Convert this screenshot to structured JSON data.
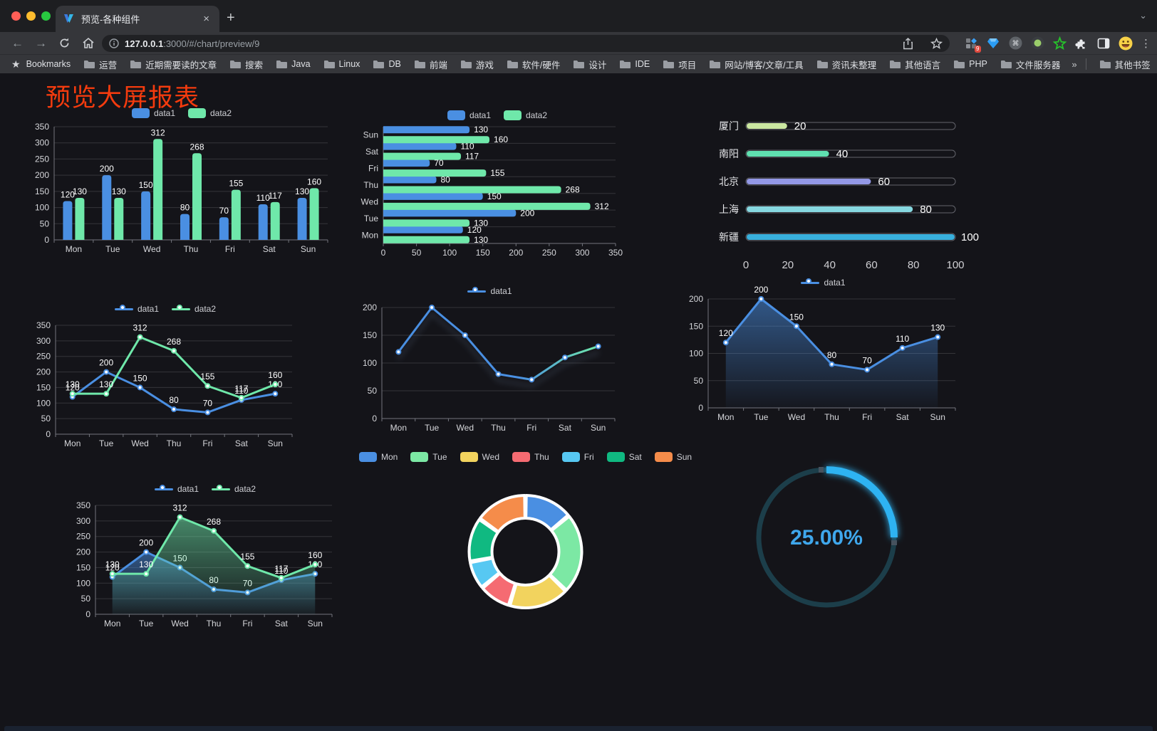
{
  "browser": {
    "tab": {
      "title": "预览-各种组件"
    },
    "icons": {
      "close": "×",
      "new_tab": "+",
      "tab_search": "⌄",
      "back": "←",
      "forward": "→",
      "menu": "⋮",
      "overflow": "»",
      "bookmarks_star": "★"
    },
    "url": {
      "host": "127.0.0.1",
      "rest": ":3000/#/chart/preview/9"
    },
    "extension_badge": "9",
    "bookmarks_label": "Bookmarks",
    "bookmarks": [
      "运营",
      "近期需要读的文章",
      "搜索",
      "Java",
      "Linux",
      "DB",
      "前端",
      "游戏",
      "软件/硬件",
      "设计",
      "IDE",
      "项目",
      "网站/博客/文章/工具",
      "资讯未整理",
      "其他语言",
      "PHP",
      "文件服务器"
    ],
    "other_bookmarks": "其他书签"
  },
  "page": {
    "title": "预览大屏报表",
    "title_color": "#f43b0e",
    "background": "#141419"
  },
  "palette": {
    "blue": "#4a8fe2",
    "green": "#6fe8aa",
    "axis_label": "#d6d7db",
    "grid": "rgba(255,255,255,0.14)",
    "axis_line": "#73757d",
    "value_label": "#ffffff"
  },
  "chart_data": [
    {
      "id": "bar1",
      "type": "bar",
      "categories": [
        "Mon",
        "Tue",
        "Wed",
        "Thu",
        "Fri",
        "Sat",
        "Sun"
      ],
      "series": [
        {
          "name": "data1",
          "color": "#4a8fe2",
          "values": [
            120,
            200,
            150,
            80,
            70,
            110,
            130
          ]
        },
        {
          "name": "data2",
          "color": "#6fe8aa",
          "values": [
            130,
            130,
            312,
            268,
            155,
            117,
            160
          ]
        }
      ],
      "ylim": [
        0,
        350
      ],
      "interval": 50,
      "legend_position": "top",
      "grid": true
    },
    {
      "id": "hbar1",
      "type": "bar-horizontal",
      "categories": [
        "Mon",
        "Tue",
        "Wed",
        "Thu",
        "Fri",
        "Sat",
        "Sun"
      ],
      "series": [
        {
          "name": "data1",
          "color": "#4a8fe2",
          "values": [
            120,
            200,
            150,
            80,
            70,
            110,
            130
          ]
        },
        {
          "name": "data2",
          "color": "#6fe8aa",
          "values": [
            130,
            130,
            312,
            268,
            155,
            117,
            160
          ]
        }
      ],
      "xlim": [
        0,
        350
      ],
      "interval": 50,
      "legend_position": "top",
      "grid": true
    },
    {
      "id": "progress1",
      "type": "progress-bars",
      "items": [
        {
          "label": "厦门",
          "value": 20,
          "color": "#cbe7a1"
        },
        {
          "label": "南阳",
          "value": 40,
          "color": "#5fe0b0"
        },
        {
          "label": "北京",
          "value": 60,
          "color": "#9398e6"
        },
        {
          "label": "上海",
          "value": 80,
          "color": "#86d8e0"
        },
        {
          "label": "新疆",
          "value": 100,
          "color": "#38b0dd"
        }
      ],
      "xticks": [
        0,
        20,
        40,
        60,
        80,
        100
      ]
    },
    {
      "id": "line2",
      "type": "line",
      "categories": [
        "Mon",
        "Tue",
        "Wed",
        "Thu",
        "Fri",
        "Sat",
        "Sun"
      ],
      "series": [
        {
          "name": "data1",
          "color": "#4a8fe2",
          "values": [
            120,
            200,
            150,
            80,
            70,
            110,
            130
          ]
        },
        {
          "name": "data2",
          "color": "#6fe8aa",
          "values": [
            130,
            130,
            312,
            268,
            155,
            117,
            160
          ]
        }
      ],
      "ylim": [
        0,
        350
      ],
      "interval": 50,
      "labels": true,
      "legend_position": "top"
    },
    {
      "id": "lineGrad",
      "type": "line",
      "categories": [
        "Mon",
        "Tue",
        "Wed",
        "Thu",
        "Fri",
        "Sat",
        "Sun"
      ],
      "series": [
        {
          "name": "data1",
          "color": "#4a8fe2",
          "gradient": [
            "#4a8fe2",
            "#6fe8aa"
          ],
          "shadow": true,
          "values": [
            120,
            200,
            150,
            80,
            70,
            110,
            130
          ]
        }
      ],
      "ylim": [
        0,
        200
      ],
      "interval": 50,
      "labels": false,
      "legend_position": "top"
    },
    {
      "id": "area1",
      "type": "line",
      "categories": [
        "Mon",
        "Tue",
        "Wed",
        "Thu",
        "Fri",
        "Sat",
        "Sun"
      ],
      "series": [
        {
          "name": "data1",
          "color": "#4a8fe2",
          "area": true,
          "values": [
            120,
            200,
            150,
            80,
            70,
            110,
            130
          ]
        }
      ],
      "ylim": [
        0,
        200
      ],
      "interval": 50,
      "labels": true,
      "legend_position": "top"
    },
    {
      "id": "area2",
      "type": "line",
      "categories": [
        "Mon",
        "Tue",
        "Wed",
        "Thu",
        "Fri",
        "Sat",
        "Sun"
      ],
      "series": [
        {
          "name": "data1",
          "color": "#4a8fe2",
          "area": true,
          "values": [
            120,
            200,
            150,
            80,
            70,
            110,
            130
          ]
        },
        {
          "name": "data2",
          "color": "#6fe8aa",
          "area": true,
          "values": [
            130,
            130,
            312,
            268,
            155,
            117,
            160
          ]
        }
      ],
      "ylim": [
        0,
        350
      ],
      "interval": 50,
      "labels": true,
      "legend_position": "top"
    },
    {
      "id": "pie1",
      "type": "pie",
      "style": "donut",
      "legend_position": "top",
      "items": [
        {
          "name": "Mon",
          "value": 120,
          "color": "#4a8fe2"
        },
        {
          "name": "Tue",
          "value": 200,
          "color": "#7ce8a4"
        },
        {
          "name": "Wed",
          "value": 150,
          "color": "#f2d35e"
        },
        {
          "name": "Thu",
          "value": 80,
          "color": "#f56b72"
        },
        {
          "name": "Fri",
          "value": 70,
          "color": "#57c8f2"
        },
        {
          "name": "Sat",
          "value": 110,
          "color": "#10b981"
        },
        {
          "name": "Sun",
          "value": 130,
          "color": "#f58c4a"
        }
      ]
    },
    {
      "id": "gauge1",
      "type": "gauge",
      "value": 25,
      "display": "25.00%",
      "arc_color": "#2db3f2",
      "track_color": "#1c3e4a",
      "text_color": "#3fa7ec"
    }
  ]
}
